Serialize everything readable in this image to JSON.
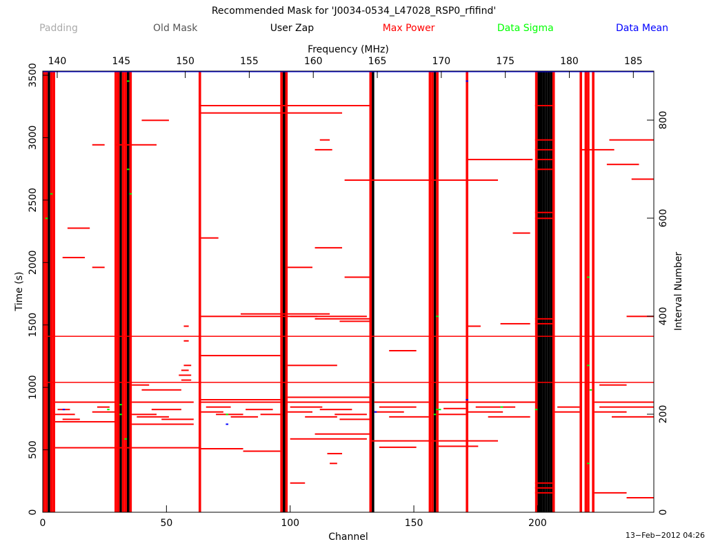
{
  "chart_data": {
    "type": "mask",
    "title": "Recommended Mask for 'J0034-0534_L47028_RSP0_rfifind'",
    "x_label": "Channel",
    "y_label": "Time (s)",
    "x2_label": "Frequency (MHz)",
    "y2_label": "Interval Number",
    "date": "13−Feb−2012 04:26",
    "xlim": [
      0,
      247
    ],
    "xticks": [
      0,
      50,
      100,
      150,
      200
    ],
    "ylim": [
      0,
      3533
    ],
    "yticks": [
      0,
      500,
      1000,
      1500,
      2000,
      2500,
      3000,
      3500
    ],
    "y2lim": [
      0,
      900
    ],
    "y2ticks": [
      0,
      200,
      400,
      600,
      800
    ],
    "x2lim": [
      138.87,
      186.6
    ],
    "x2ticks": [
      140,
      145,
      150,
      155,
      160,
      165,
      170,
      175,
      180,
      185
    ],
    "series": [
      {
        "name": "Padding",
        "color": "#aaaaaa"
      },
      {
        "name": "Old Mask",
        "color": "#555555"
      },
      {
        "name": "User Zap",
        "color": "#000000",
        "channels": [
          2,
          31,
          34,
          97,
          133,
          158,
          200,
          201,
          202,
          203,
          204,
          205
        ]
      },
      {
        "name": "Max Power",
        "color": "#ff0000",
        "channels": [
          0,
          1,
          3,
          4,
          29,
          30,
          32,
          33,
          35,
          63,
          96,
          98,
          132,
          156,
          157,
          159,
          171,
          199,
          206,
          217,
          219,
          220,
          222
        ],
        "intervals": [
          265,
          359
        ],
        "segments": [
          [
            5,
            12,
            200
          ],
          [
            6,
            10,
            210
          ],
          [
            8,
            14,
            190
          ],
          [
            20,
            28,
            205
          ],
          [
            22,
            26,
            215
          ],
          [
            36,
            45,
            200
          ],
          [
            38,
            50,
            195
          ],
          [
            44,
            55,
            210
          ],
          [
            48,
            60,
            190
          ],
          [
            64,
            72,
            205
          ],
          [
            66,
            75,
            215
          ],
          [
            70,
            80,
            200
          ],
          [
            76,
            86,
            195
          ],
          [
            82,
            92,
            210
          ],
          [
            88,
            96,
            200
          ],
          [
            99,
            108,
            205
          ],
          [
            100,
            112,
            215
          ],
          [
            106,
            118,
            195
          ],
          [
            112,
            124,
            210
          ],
          [
            118,
            130,
            200
          ],
          [
            120,
            131,
            190
          ],
          [
            134,
            145,
            205
          ],
          [
            136,
            150,
            215
          ],
          [
            140,
            155,
            195
          ],
          [
            160,
            170,
            200
          ],
          [
            162,
            170,
            212
          ],
          [
            172,
            185,
            205
          ],
          [
            175,
            190,
            215
          ],
          [
            180,
            196,
            195
          ],
          [
            186,
            198,
            225
          ],
          [
            207,
            216,
            205
          ],
          [
            208,
            216,
            215
          ],
          [
            223,
            235,
            205
          ],
          [
            225,
            246,
            215
          ],
          [
            230,
            246,
            195
          ],
          [
            223,
            246,
            225
          ],
          [
            5,
            28,
            225
          ],
          [
            36,
            60,
            225
          ],
          [
            64,
            96,
            225
          ],
          [
            99,
            131,
            225
          ],
          [
            134,
            155,
            225
          ],
          [
            160,
            198,
            225
          ],
          [
            5,
            28,
            185
          ],
          [
            36,
            60,
            180
          ],
          [
            64,
            96,
            230
          ],
          [
            99,
            131,
            235
          ],
          [
            56,
            59,
            270
          ],
          [
            55,
            59,
            280
          ],
          [
            56,
            58,
            290
          ],
          [
            57,
            59,
            300
          ],
          [
            57,
            58,
            350
          ],
          [
            57,
            58,
            380
          ],
          [
            64,
            110,
            400
          ],
          [
            80,
            115,
            405
          ],
          [
            100,
            130,
            400
          ],
          [
            110,
            131,
            395
          ],
          [
            120,
            131,
            390
          ],
          [
            172,
            176,
            380
          ],
          [
            185,
            196,
            385
          ],
          [
            199,
            206,
            385
          ],
          [
            199,
            206,
            395
          ],
          [
            236,
            246,
            400
          ],
          [
            199,
            206,
            40
          ],
          [
            199,
            206,
            50
          ],
          [
            199,
            206,
            60
          ],
          [
            199,
            206,
            600
          ],
          [
            199,
            206,
            612
          ],
          [
            199,
            206,
            700
          ],
          [
            199,
            206,
            720
          ],
          [
            199,
            206,
            740
          ],
          [
            199,
            206,
            760
          ],
          [
            199,
            206,
            830
          ],
          [
            64,
            120,
            815
          ],
          [
            112,
            115,
            760
          ],
          [
            110,
            116,
            740
          ],
          [
            40,
            50,
            800
          ],
          [
            20,
            24,
            750
          ],
          [
            228,
            240,
            710
          ],
          [
            218,
            230,
            740
          ],
          [
            229,
            246,
            760
          ],
          [
            172,
            197,
            720
          ],
          [
            238,
            246,
            680
          ],
          [
            100,
            130,
            150
          ],
          [
            110,
            131,
            160
          ],
          [
            115,
            120,
            120
          ],
          [
            116,
            118,
            100
          ],
          [
            64,
            80,
            130
          ],
          [
            81,
            95,
            125
          ],
          [
            136,
            150,
            133
          ],
          [
            160,
            175,
            135
          ],
          [
            223,
            235,
            40
          ],
          [
            236,
            246,
            30
          ],
          [
            64,
            95,
            320
          ],
          [
            99,
            118,
            300
          ],
          [
            40,
            55,
            250
          ],
          [
            20,
            24,
            500
          ],
          [
            8,
            16,
            520
          ],
          [
            30,
            45,
            750
          ],
          [
            100,
            105,
            60
          ],
          [
            36,
            42,
            260
          ],
          [
            122,
            131,
            480
          ],
          [
            140,
            150,
            330
          ],
          [
            225,
            235,
            260
          ],
          [
            99,
            108,
            500
          ],
          [
            110,
            120,
            540
          ],
          [
            64,
            70,
            560
          ],
          [
            10,
            18,
            580
          ],
          [
            190,
            196,
            570
          ],
          [
            63,
            131,
            830
          ],
          [
            5,
            63,
            132
          ],
          [
            122,
            183,
            678
          ],
          [
            133,
            183,
            146
          ]
        ]
      },
      {
        "name": "Data Sigma",
        "color": "#00ff00",
        "segments": [
          [
            31,
            31,
            220
          ],
          [
            31,
            31,
            200
          ],
          [
            34,
            34,
            880
          ],
          [
            34,
            34,
            700
          ],
          [
            35,
            35,
            650
          ],
          [
            158,
            158,
            200
          ],
          [
            159,
            160,
            210
          ],
          [
            220,
            220,
            100
          ],
          [
            220,
            220,
            300
          ],
          [
            220,
            220,
            480
          ],
          [
            221,
            221,
            250
          ],
          [
            3,
            3,
            650
          ],
          [
            1,
            1,
            600
          ],
          [
            33,
            33,
            150
          ],
          [
            159,
            159,
            400
          ],
          [
            199,
            199,
            210
          ],
          [
            26,
            26,
            210
          ],
          [
            74,
            74,
            200
          ],
          [
            185,
            185,
            215
          ]
        ]
      },
      {
        "name": "Data Mean",
        "color": "#0000ff",
        "intervals": [
          899
        ],
        "segments": [
          [
            171,
            171,
            230
          ],
          [
            171,
            171,
            880
          ],
          [
            134,
            134,
            205
          ],
          [
            8,
            8,
            210
          ],
          [
            74,
            74,
            180
          ]
        ]
      }
    ]
  }
}
